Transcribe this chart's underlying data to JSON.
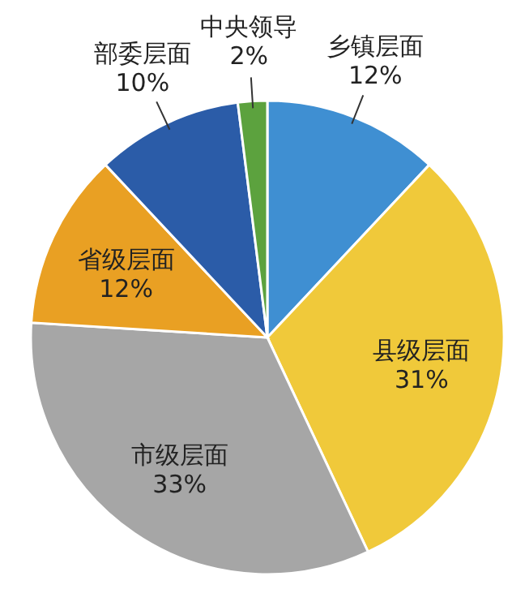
{
  "chart_data": {
    "type": "pie",
    "categories": [
      "乡镇层面",
      "县级层面",
      "市级层面",
      "省级层面",
      "部委层面",
      "中央领导"
    ],
    "values": [
      12,
      31,
      33,
      12,
      10,
      2
    ],
    "value_labels": [
      "12%",
      "31%",
      "33%",
      "12%",
      "10%",
      "2%"
    ],
    "colors": [
      "#3f8fd2",
      "#f0c93a",
      "#a6a6a6",
      "#e9a023",
      "#2b5ca8",
      "#5ca23e"
    ]
  }
}
